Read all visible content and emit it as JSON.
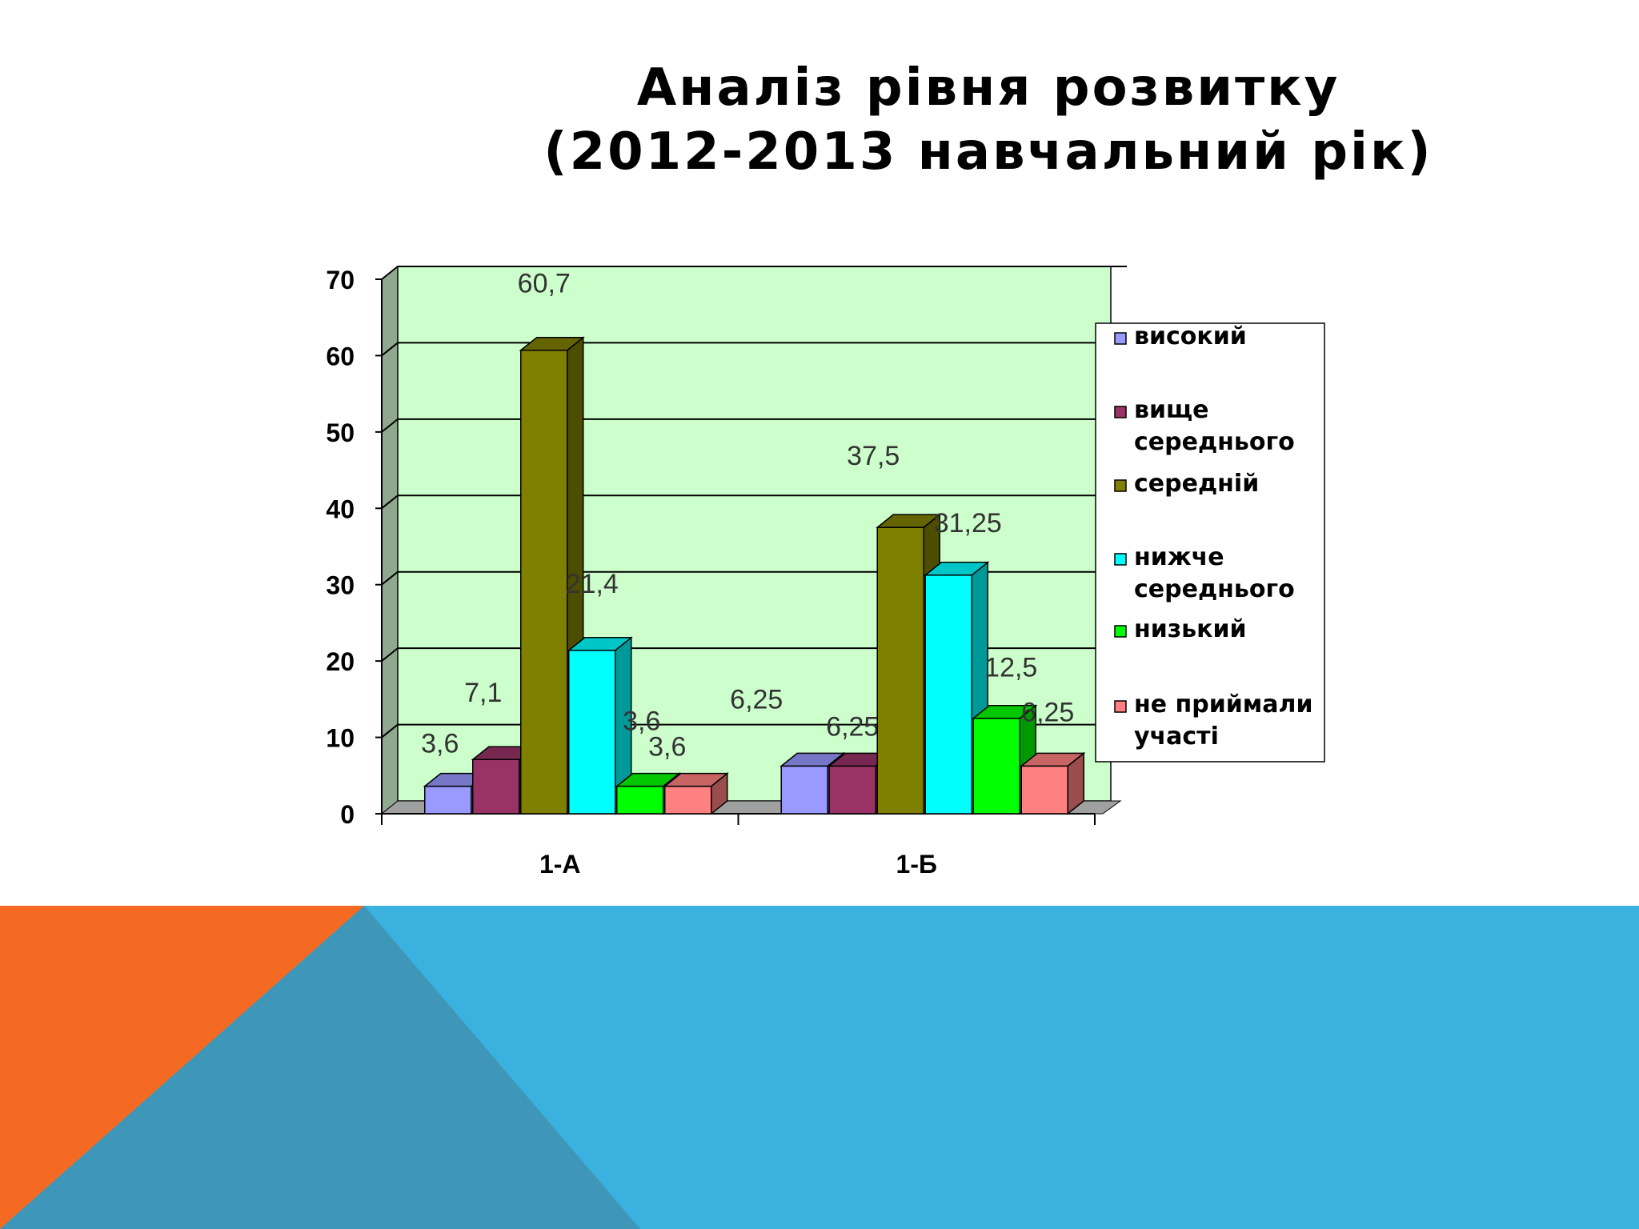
{
  "slide": {
    "title_line1": "Аналіз рівня розвитку",
    "title_line2": "(2012-2013 навчальний рік)"
  },
  "chart_data": {
    "type": "bar",
    "categories": [
      "1-А",
      "1-Б"
    ],
    "series": [
      {
        "name": "високий",
        "values": [
          3.6,
          6.25
        ],
        "labels": [
          "3,6",
          "6,25"
        ],
        "color": "#9999FF"
      },
      {
        "name": "вище середнього",
        "values": [
          7.1,
          6.25
        ],
        "labels": [
          "7,1",
          "6,25"
        ],
        "color": "#993366"
      },
      {
        "name": "середній",
        "values": [
          60.7,
          37.5
        ],
        "labels": [
          "60,7",
          "37,5"
        ],
        "color": "#808000"
      },
      {
        "name": "нижче середнього",
        "values": [
          21.4,
          31.25
        ],
        "labels": [
          "21,4",
          "31,25"
        ],
        "color": "#00FFFF"
      },
      {
        "name": "низький",
        "values": [
          3.6,
          12.5
        ],
        "labels": [
          "3,6",
          "12,5"
        ],
        "color": "#00FF00"
      },
      {
        "name": "не приймали участі",
        "values": [
          3.6,
          6.25
        ],
        "labels": [
          "3,6",
          "6,25"
        ],
        "color": "#FF8080"
      }
    ],
    "ylim": [
      0,
      70
    ],
    "yticks": [
      0,
      10,
      20,
      30,
      40,
      50,
      60,
      70
    ],
    "grid": true,
    "legend_position": "right",
    "plot_background": "#CCFFCC"
  },
  "theme": {
    "accent_orange": "#F46A22",
    "accent_blue": "#3AB1DE",
    "accent_steel": "#3E96B8"
  }
}
